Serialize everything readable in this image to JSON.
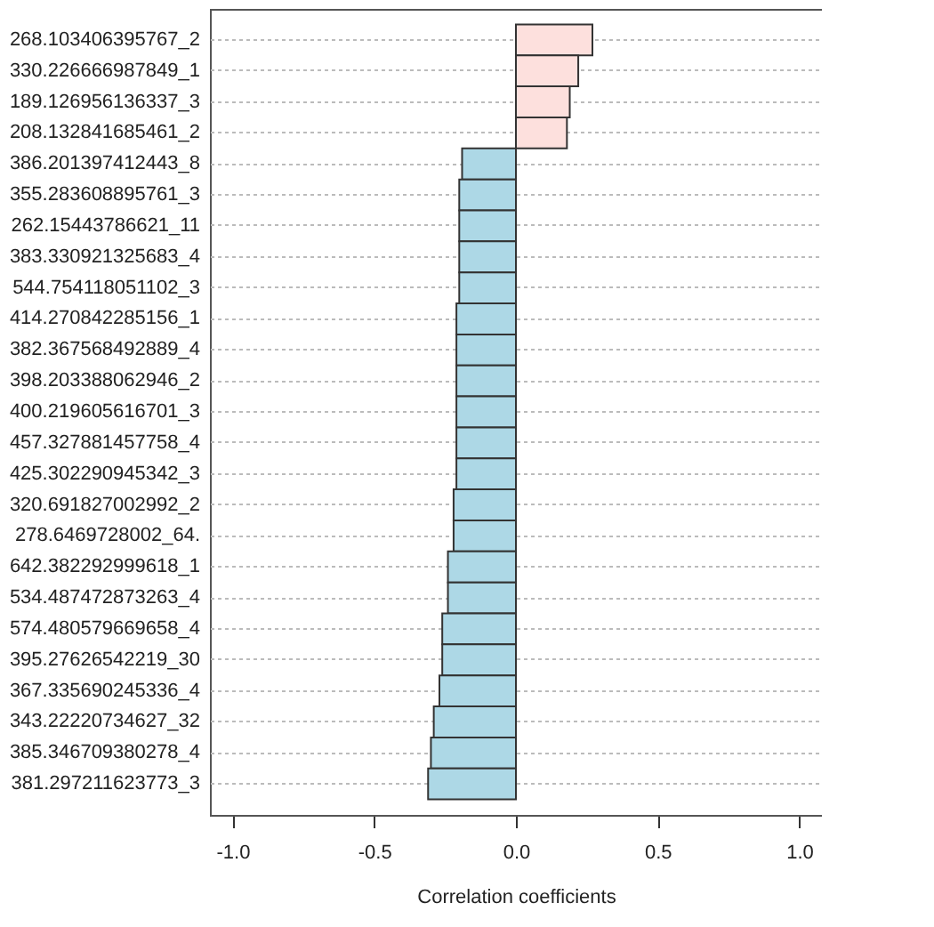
{
  "chart_data": {
    "type": "bar",
    "orientation": "horizontal",
    "xlabel": "Correlation coefficients",
    "categories": [
      "268.103406395767_2",
      "330.226666987849_1",
      "189.126956136337_3",
      "208.132841685461_2",
      "386.201397412443_8",
      "355.283608895761_3",
      "262.15443786621_11",
      "383.330921325683_4",
      "544.754118051102_3",
      "414.270842285156_1",
      "382.367568492889_4",
      "398.203388062946_2",
      "400.219605616701_3",
      "457.327881457758_4",
      "425.302290945342_3",
      "320.691827002992_2",
      "278.6469728002_64.",
      "642.382292999618_1",
      "534.487472873263_4",
      "574.480579669658_4",
      "395.27626542219_30",
      "367.335690245336_4",
      "343.22220734627_32",
      "385.346709380278_4",
      "381.297211623773_3"
    ],
    "values": [
      0.27,
      0.22,
      0.19,
      0.18,
      -0.19,
      -0.2,
      -0.2,
      -0.2,
      -0.2,
      -0.21,
      -0.21,
      -0.21,
      -0.21,
      -0.21,
      -0.21,
      -0.22,
      -0.22,
      -0.24,
      -0.24,
      -0.26,
      -0.26,
      -0.27,
      -0.29,
      -0.3,
      -0.31
    ],
    "colors": [
      "#fde0dd",
      "#fde0dd",
      "#fde0dd",
      "#fde0dd",
      "#add8e6",
      "#add8e6",
      "#add8e6",
      "#add8e6",
      "#add8e6",
      "#add8e6",
      "#add8e6",
      "#add8e6",
      "#add8e6",
      "#add8e6",
      "#add8e6",
      "#add8e6",
      "#add8e6",
      "#add8e6",
      "#add8e6",
      "#add8e6",
      "#add8e6",
      "#add8e6",
      "#add8e6",
      "#add8e6",
      "#add8e6"
    ],
    "xlim": [
      -1.08,
      1.08
    ],
    "xticks": [
      {
        "value": -1,
        "label": "-1.0"
      },
      {
        "value": -0.5,
        "label": "-0.5"
      },
      {
        "value": 0,
        "label": "0.0"
      },
      {
        "value": 0.5,
        "label": "0.5"
      },
      {
        "value": 1,
        "label": "1.0"
      }
    ],
    "grid": "y"
  }
}
